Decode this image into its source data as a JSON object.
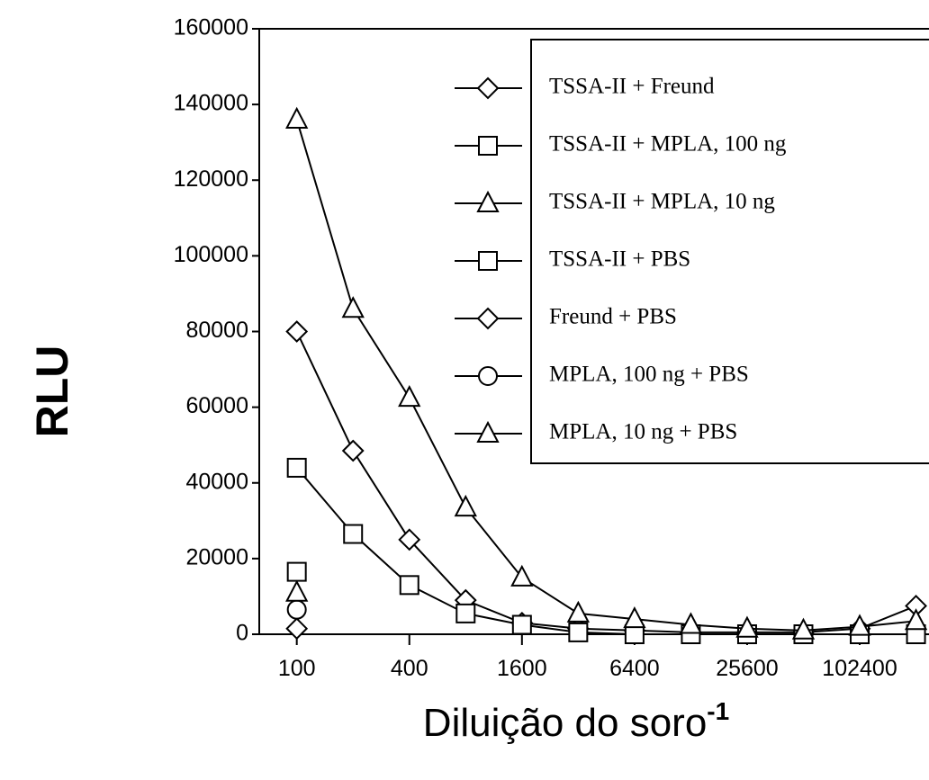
{
  "chart_data": {
    "type": "line",
    "ylabel": "RLU",
    "xlabel": "Diluição do soro",
    "xlabel_sup": "-1",
    "x": [
      100,
      200,
      400,
      800,
      1600,
      3200,
      6400,
      12800,
      25600,
      51200,
      102400,
      204800
    ],
    "xscale": "log",
    "xlim": [
      63,
      300000
    ],
    "xticks": [
      100,
      400,
      1600,
      6400,
      25600,
      102400
    ],
    "ylim": [
      0,
      160000
    ],
    "yticks": [
      0,
      20000,
      40000,
      60000,
      80000,
      100000,
      120000,
      140000,
      160000
    ],
    "grid": false,
    "legend": "upper right",
    "series": [
      {
        "name": "TSSA-II + Freund",
        "color": "#000000",
        "marker": "diamond",
        "values": [
          80000,
          48500,
          25000,
          9000,
          3000,
          1500,
          1000,
          500,
          500,
          500,
          1500,
          7500
        ]
      },
      {
        "name": "TSSA-II + MPLA, 100 ng",
        "color": "#000000",
        "marker": "square",
        "values": [
          44000,
          26500,
          13000,
          5500,
          2500,
          500,
          0,
          0,
          0,
          0,
          0,
          0
        ]
      },
      {
        "name": "TSSA-II + MPLA, 10 ng",
        "color": "#000000",
        "marker": "triangle",
        "values": [
          136000,
          86000,
          62500,
          33500,
          15000,
          5500,
          4000,
          2500,
          1500,
          1000,
          2000,
          3500
        ]
      },
      {
        "name": "TSSA-II + PBS",
        "color": "#000000",
        "marker": "square",
        "values": [
          16500,
          null,
          null,
          null,
          null,
          null,
          null,
          null,
          null,
          null,
          null,
          null
        ]
      },
      {
        "name": "Freund + PBS",
        "color": "#000000",
        "marker": "diamond",
        "values": [
          1500,
          null,
          null,
          null,
          null,
          null,
          null,
          null,
          null,
          null,
          null,
          null
        ]
      },
      {
        "name": "MPLA, 100 ng + PBS",
        "color": "#000000",
        "marker": "circle",
        "values": [
          6500,
          null,
          null,
          null,
          null,
          null,
          null,
          null,
          null,
          null,
          null,
          null
        ]
      },
      {
        "name": "MPLA, 10 ng + PBS",
        "color": "#000000",
        "marker": "triangle",
        "values": [
          11000,
          null,
          null,
          null,
          null,
          null,
          null,
          null,
          null,
          null,
          null,
          null
        ]
      }
    ]
  }
}
